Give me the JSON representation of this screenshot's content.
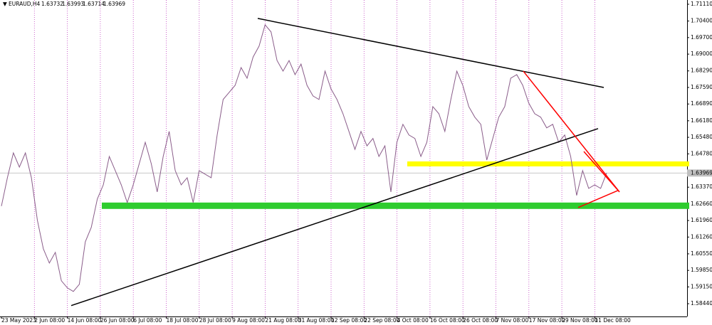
{
  "chart_data": {
    "type": "line",
    "header": {
      "symbol": "EURAUD,H4",
      "ohlc": [
        1.63732,
        1.63993,
        1.63714,
        1.63969
      ]
    },
    "last_price": 1.63969,
    "x_labels": [
      "23 May 2023",
      "2 Jun 08:00",
      "14 Jun 08:00",
      "26 Jun 08:00",
      "6 Jul 08:00",
      "18 Jul 08:00",
      "28 Jul 08:00",
      "9 Aug 08:00",
      "21 Aug 08:00",
      "31 Aug 08:00",
      "12 Sep 08:00",
      "22 Sep 08:00",
      "4 Oct 08:00",
      "16 Oct 08:00",
      "26 Oct 08:00",
      "7 Nov 08:00",
      "17 Nov 08:00",
      "29 Nov 08:00",
      "11 Dec 08:00"
    ],
    "ylim": [
      1.579,
      1.7129
    ],
    "yticks": [
      {
        "value": 1.7111,
        "label": "1.71110"
      },
      {
        "value": 1.704,
        "label": "1.70400"
      },
      {
        "value": 1.697,
        "label": "1.69700"
      },
      {
        "value": 1.69,
        "label": "1.69000"
      },
      {
        "value": 1.6829,
        "label": "1.68290"
      },
      {
        "value": 1.6759,
        "label": "1.67590"
      },
      {
        "value": 1.6689,
        "label": "1.66890"
      },
      {
        "value": 1.6618,
        "label": "1.66180"
      },
      {
        "value": 1.6548,
        "label": "1.65480"
      },
      {
        "value": 1.6478,
        "label": "1.64780"
      },
      {
        "value": 1.6337,
        "label": "1.63370"
      },
      {
        "value": 1.6266,
        "label": "1.62660"
      },
      {
        "value": 1.6196,
        "label": "1.61960"
      },
      {
        "value": 1.6126,
        "label": "1.61260"
      },
      {
        "value": 1.6055,
        "label": "1.60550"
      },
      {
        "value": 1.5985,
        "label": "1.59850"
      },
      {
        "value": 1.5915,
        "label": "1.59150"
      },
      {
        "value": 1.5844,
        "label": "1.58440"
      }
    ],
    "series": [
      {
        "color": "#8a5d8a",
        "values": [
          1.6257,
          1.6377,
          1.6482,
          1.6422,
          1.6482,
          1.6377,
          1.6197,
          1.6076,
          1.6016,
          1.6061,
          1.5941,
          1.5911,
          1.5896,
          1.5926,
          1.6106,
          1.6167,
          1.6287,
          1.6347,
          1.6467,
          1.6407,
          1.6347,
          1.6272,
          1.6347,
          1.6437,
          1.6527,
          1.6437,
          1.6317,
          1.6467,
          1.6573,
          1.6407,
          1.6347,
          1.6377,
          1.6272,
          1.6407,
          1.6392,
          1.6377,
          1.6558,
          1.6708,
          1.6738,
          1.6768,
          1.6843,
          1.6798,
          1.6888,
          1.6934,
          1.7024,
          1.6994,
          1.6873,
          1.6828,
          1.6873,
          1.6813,
          1.6858,
          1.6768,
          1.6723,
          1.6708,
          1.6828,
          1.6753,
          1.6708,
          1.6648,
          1.6573,
          1.6497,
          1.6573,
          1.6512,
          1.6543,
          1.6467,
          1.6512,
          1.6317,
          1.6527,
          1.6603,
          1.6558,
          1.6543,
          1.6467,
          1.6527,
          1.6678,
          1.6648,
          1.6573,
          1.6708,
          1.6828,
          1.6768,
          1.6678,
          1.6633,
          1.6603,
          1.6452,
          1.6543,
          1.6633,
          1.6678,
          1.6798,
          1.6813,
          1.6768,
          1.6693,
          1.6648,
          1.6633,
          1.6588,
          1.6603,
          1.6527,
          1.6558,
          1.6467,
          1.6302,
          1.6407,
          1.6332,
          1.6347,
          1.6332,
          1.6397
        ]
      }
    ],
    "zones": [
      {
        "color": "#ffff00",
        "prices": [
          1.6446,
          1.6425
        ]
      },
      {
        "color": "#2ecc2e",
        "prices": [
          1.6272,
          1.6245
        ]
      }
    ],
    "trendlines": [
      {
        "color": "#000000",
        "prices": [
          1.7051,
          1.6759
        ]
      },
      {
        "color": "#000000",
        "prices": [
          1.5836,
          1.6585
        ]
      },
      {
        "color": "#ff0000",
        "prices": [
          1.6828,
          1.6317
        ]
      },
      {
        "color": "#ff0000",
        "prices": [
          1.6251,
          1.6323
        ]
      },
      {
        "color": "#ff0000",
        "prices": [
          1.6488,
          1.6317
        ]
      }
    ]
  }
}
